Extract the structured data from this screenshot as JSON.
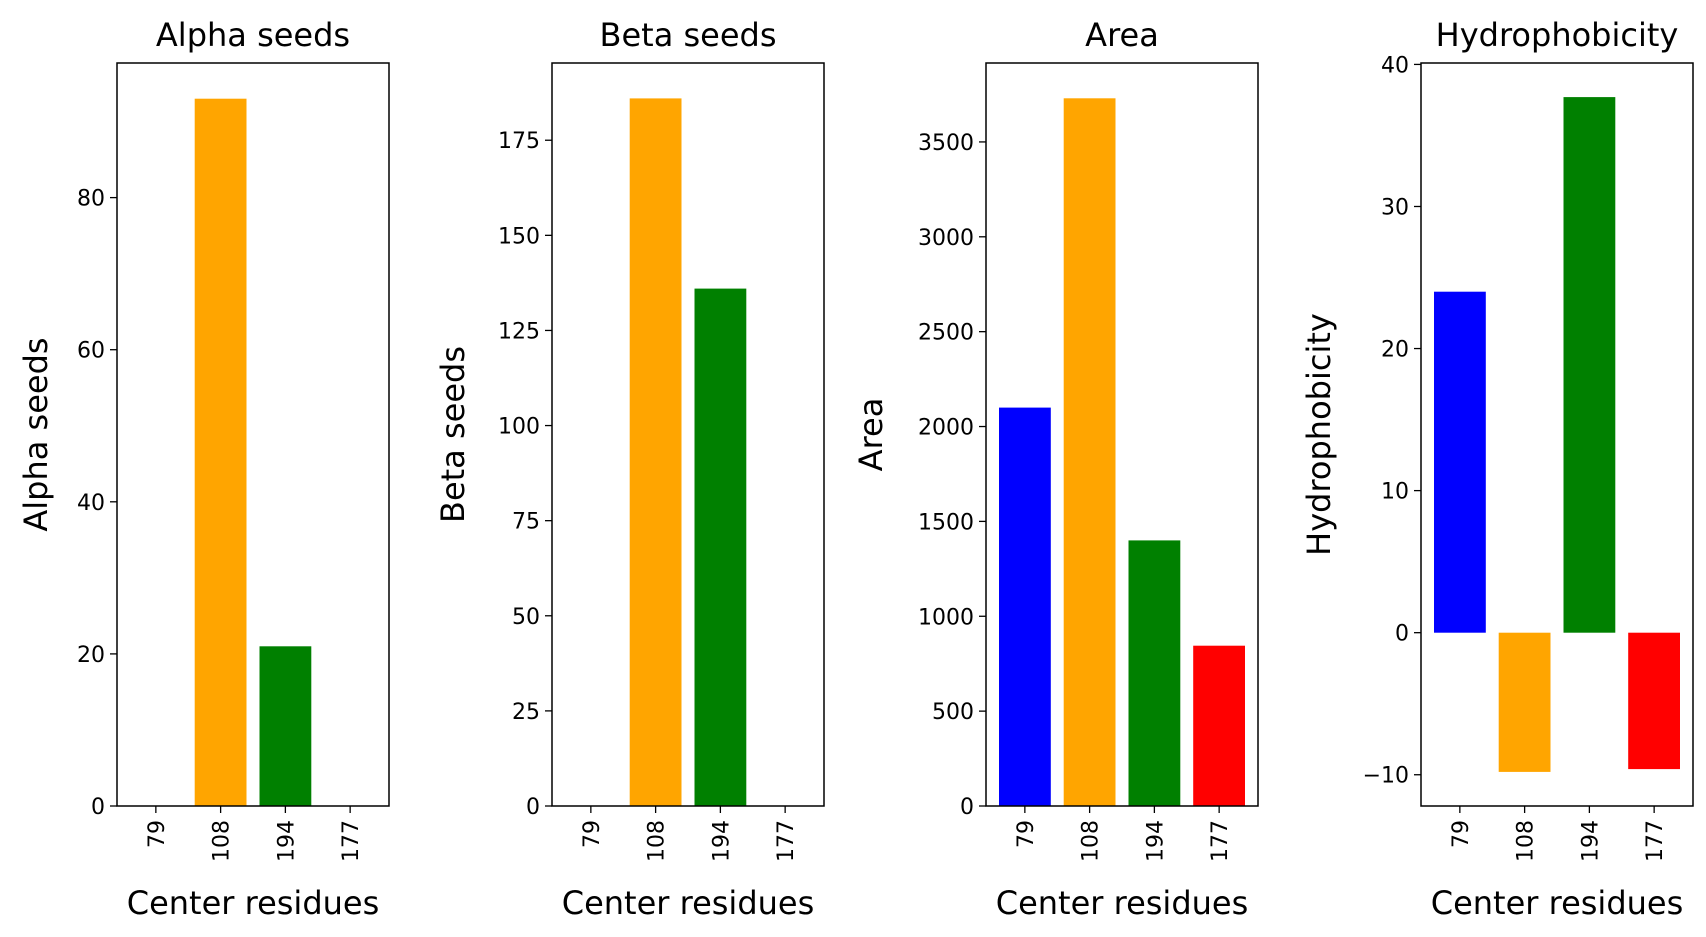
{
  "chart_data": [
    {
      "type": "bar",
      "title": "Alpha seeds",
      "xlabel": "Center residues",
      "ylabel": "Alpha seeds",
      "categories": [
        "79",
        "108",
        "194",
        "177"
      ],
      "values": [
        0,
        93,
        21,
        0
      ],
      "colors": [
        "#0000ff",
        "#ffa500",
        "#008000",
        "#ff0000"
      ],
      "ylim": [
        0,
        97.7
      ],
      "yticks": [
        0,
        20,
        40,
        60,
        80
      ],
      "grid": false
    },
    {
      "type": "bar",
      "title": "Beta seeds",
      "xlabel": "Center residues",
      "ylabel": "Beta seeds",
      "categories": [
        "79",
        "108",
        "194",
        "177"
      ],
      "values": [
        0,
        186,
        136,
        0
      ],
      "colors": [
        "#0000ff",
        "#ffa500",
        "#008000",
        "#ff0000"
      ],
      "ylim": [
        0,
        195.3
      ],
      "yticks": [
        0,
        25,
        50,
        75,
        100,
        125,
        150,
        175
      ],
      "grid": false
    },
    {
      "type": "bar",
      "title": "Area",
      "xlabel": "Center residues",
      "ylabel": "Area",
      "categories": [
        "79",
        "108",
        "194",
        "177"
      ],
      "values": [
        2100,
        3730,
        1400,
        845
      ],
      "colors": [
        "#0000ff",
        "#ffa500",
        "#008000",
        "#ff0000"
      ],
      "ylim": [
        0,
        3916
      ],
      "yticks": [
        0,
        500,
        1000,
        1500,
        2000,
        2500,
        3000,
        3500
      ],
      "grid": false
    },
    {
      "type": "bar",
      "title": "Hydrophobicity",
      "xlabel": "Center residues",
      "ylabel": "Hydrophobicity",
      "categories": [
        "79",
        "108",
        "194",
        "177"
      ],
      "values": [
        24.0,
        -9.8,
        37.7,
        -9.6
      ],
      "colors": [
        "#0000ff",
        "#ffa500",
        "#008000",
        "#ff0000"
      ],
      "ylim": [
        -12.2,
        40.1
      ],
      "yticks": [
        -10,
        0,
        10,
        20,
        30,
        40
      ],
      "ytick_labels": [
        "−10",
        "0",
        "10",
        "20",
        "30",
        "40"
      ],
      "grid": false
    }
  ]
}
